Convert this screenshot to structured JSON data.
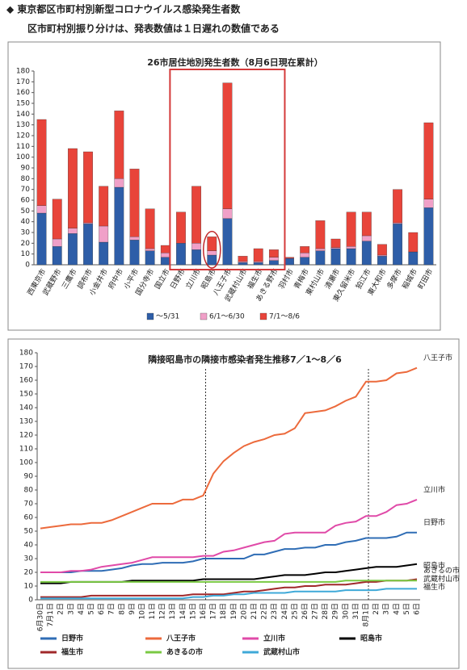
{
  "header": {
    "title": "◆ 東京都区市町村別新型コロナウイルス感染発生者数",
    "note": "区市町村別振り分けは、発表数値は１日遅れの数値である"
  },
  "chart_data": [
    {
      "type": "stacked_bar",
      "title": "26市居住地別発生者数（8月6日現在累計）",
      "categories": [
        "西東京市",
        "武蔵野市",
        "三鷹市",
        "調布市",
        "小金井市",
        "府中市",
        "小平市",
        "国分寺市",
        "国立市",
        "日野市",
        "立川市",
        "昭島市",
        "八王子市",
        "武蔵村山市",
        "福生市",
        "あきる野市",
        "羽村市",
        "青梅市",
        "東村山市",
        "清瀬市",
        "東久留米市",
        "狛江市",
        "東大和市",
        "多摩市",
        "稲城市",
        "町田市"
      ],
      "series": [
        {
          "name": "～5/31",
          "color": "#2e5ea8",
          "values": [
            48,
            17,
            29,
            38,
            21,
            72,
            23,
            13,
            7,
            20,
            14,
            9,
            43,
            2,
            2,
            4,
            6,
            7,
            13,
            15,
            15,
            22,
            8,
            38,
            12,
            53
          ]
        },
        {
          "name": "6/1～6/30",
          "color": "#f0a0c8",
          "values": [
            7,
            7,
            5,
            1,
            15,
            8,
            3,
            2,
            4,
            0,
            6,
            4,
            9,
            1,
            1,
            3,
            0,
            4,
            2,
            1,
            2,
            5,
            1,
            1,
            0,
            8
          ]
        },
        {
          "name": "7/1～8/6",
          "color": "#e8443a",
          "values": [
            80,
            37,
            74,
            66,
            37,
            63,
            63,
            37,
            7,
            29,
            53,
            13,
            117,
            5,
            12,
            7,
            1,
            6,
            26,
            8,
            32,
            22,
            10,
            31,
            18,
            71
          ]
        }
      ],
      "ylim": [
        0,
        180
      ],
      "yticks": [
        0,
        10,
        20,
        30,
        40,
        50,
        60,
        70,
        80,
        90,
        100,
        110,
        120,
        130,
        140,
        150,
        160,
        170,
        180
      ],
      "legend": "bottom"
    },
    {
      "type": "line",
      "title": "隣接昭島市の隣接市感染者発生推移7／1～8／6",
      "categories": [
        "6月30日",
        "7月1日",
        "2日",
        "3日",
        "4日",
        "5日",
        "6日",
        "7日",
        "8日",
        "9日",
        "10日",
        "11日",
        "12日",
        "13日",
        "14日",
        "15日",
        "16日",
        "17日",
        "18日",
        "19日",
        "20日",
        "21日",
        "22日",
        "23日",
        "24日",
        "25日",
        "26日",
        "27日",
        "28日",
        "29日",
        "30日",
        "31日",
        "8月1日",
        "2日",
        "3日",
        "4日",
        "5日",
        "6日"
      ],
      "series": [
        {
          "name": "日野市",
          "color": "#2f6db5",
          "values": [
            20,
            20,
            20,
            20,
            21,
            21,
            21,
            22,
            23,
            25,
            26,
            26,
            27,
            27,
            27,
            28,
            30,
            30,
            30,
            30,
            30,
            33,
            33,
            35,
            37,
            37,
            38,
            38,
            40,
            40,
            42,
            43,
            45,
            45,
            45,
            46,
            49,
            49
          ]
        },
        {
          "name": "八王子市",
          "color": "#ec6a3c",
          "values": [
            52,
            53,
            54,
            55,
            55,
            56,
            56,
            58,
            61,
            64,
            67,
            70,
            70,
            70,
            73,
            73,
            76,
            92,
            101,
            107,
            112,
            115,
            117,
            120,
            121,
            125,
            136,
            137,
            138,
            141,
            145,
            148,
            159,
            159,
            160,
            165,
            166,
            169
          ]
        },
        {
          "name": "立川市",
          "color": "#e04aa8",
          "values": [
            20,
            20,
            20,
            21,
            21,
            22,
            24,
            25,
            26,
            27,
            29,
            31,
            31,
            31,
            31,
            31,
            32,
            32,
            35,
            36,
            38,
            40,
            42,
            43,
            48,
            49,
            49,
            49,
            49,
            54,
            56,
            57,
            61,
            61,
            64,
            69,
            70,
            73
          ]
        },
        {
          "name": "昭島市",
          "color": "#000000",
          "values": [
            12,
            12,
            12,
            13,
            13,
            13,
            13,
            13,
            13,
            14,
            14,
            14,
            14,
            14,
            14,
            14,
            15,
            15,
            15,
            15,
            15,
            15,
            16,
            17,
            18,
            18,
            18,
            19,
            20,
            20,
            21,
            22,
            23,
            24,
            24,
            24,
            25,
            26
          ]
        },
        {
          "name": "福生市",
          "color": "#a0282a",
          "values": [
            2,
            2,
            2,
            2,
            2,
            3,
            3,
            3,
            3,
            3,
            3,
            3,
            3,
            3,
            3,
            4,
            4,
            4,
            4,
            5,
            6,
            6,
            7,
            8,
            9,
            9,
            10,
            10,
            11,
            11,
            11,
            12,
            13,
            13,
            14,
            14,
            14,
            15
          ]
        },
        {
          "name": "あきるの市",
          "color": "#7ac943",
          "values": [
            13,
            13,
            13,
            13,
            13,
            13,
            13,
            13,
            13,
            13,
            13,
            13,
            13,
            13,
            13,
            13,
            13,
            13,
            13,
            13,
            13,
            13,
            13,
            13,
            13,
            13,
            13,
            13,
            13,
            13,
            14,
            14,
            14,
            14,
            14,
            14,
            14,
            14
          ]
        },
        {
          "name": "武蔵村山市",
          "color": "#3fa9d8",
          "values": [
            1,
            1,
            1,
            1,
            1,
            1,
            1,
            1,
            1,
            1,
            1,
            1,
            1,
            1,
            1,
            2,
            2,
            3,
            3,
            4,
            4,
            5,
            5,
            5,
            5,
            6,
            6,
            6,
            6,
            6,
            7,
            7,
            7,
            7,
            8,
            8,
            8,
            8
          ]
        }
      ],
      "ylim": [
        0,
        180
      ],
      "yticks": [
        0,
        10,
        20,
        30,
        40,
        50,
        60,
        70,
        80,
        90,
        100,
        110,
        120,
        130,
        140,
        150,
        160,
        170,
        180
      ],
      "legend": "bottom"
    }
  ]
}
